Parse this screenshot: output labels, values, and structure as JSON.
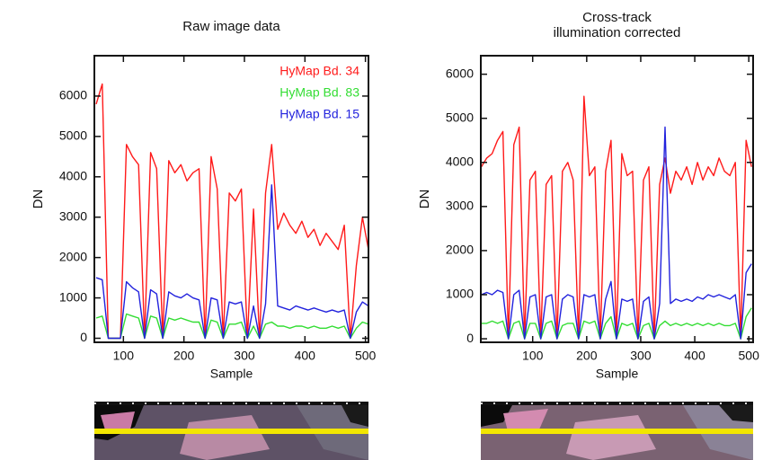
{
  "chart_data": [
    {
      "type": "line",
      "title": "Raw image data",
      "xlabel": "Sample",
      "ylabel": "DN",
      "xlim": [
        52,
        505
      ],
      "ylim": [
        -100,
        7000
      ],
      "xticks": [
        100,
        200,
        300,
        400,
        500
      ],
      "yticks": [
        0,
        1000,
        2000,
        3000,
        4000,
        5000,
        6000
      ],
      "legend": "upper right",
      "x": [
        55,
        65,
        75,
        85,
        95,
        105,
        115,
        125,
        135,
        145,
        155,
        165,
        175,
        185,
        195,
        205,
        215,
        225,
        235,
        245,
        255,
        265,
        275,
        285,
        295,
        305,
        315,
        325,
        335,
        345,
        355,
        365,
        375,
        385,
        395,
        405,
        415,
        425,
        435,
        445,
        455,
        465,
        475,
        485,
        495,
        505
      ],
      "series": [
        {
          "name": "HyMap Bd. 34",
          "color": "#ff1a1a",
          "values": [
            5800,
            6300,
            0,
            0,
            0,
            4800,
            4500,
            4300,
            0,
            4600,
            4200,
            0,
            4400,
            4100,
            4300,
            3900,
            4100,
            4200,
            0,
            4500,
            3700,
            0,
            3600,
            3400,
            3700,
            0,
            3200,
            0,
            3600,
            4800,
            2700,
            3100,
            2800,
            2600,
            2900,
            2500,
            2700,
            2300,
            2600,
            2400,
            2200,
            2800,
            0,
            1800,
            3000,
            2200
          ]
        },
        {
          "name": "HyMap Bd. 83",
          "color": "#33dd33",
          "values": [
            500,
            550,
            0,
            0,
            0,
            600,
            550,
            500,
            0,
            550,
            500,
            0,
            500,
            450,
            500,
            450,
            400,
            400,
            0,
            450,
            400,
            0,
            350,
            350,
            400,
            0,
            300,
            0,
            350,
            400,
            300,
            300,
            250,
            300,
            300,
            250,
            300,
            250,
            250,
            300,
            250,
            300,
            0,
            250,
            400,
            350
          ]
        },
        {
          "name": "HyMap Bd. 15",
          "color": "#2222dd",
          "values": [
            1500,
            1450,
            0,
            0,
            0,
            1400,
            1250,
            1150,
            0,
            1200,
            1100,
            0,
            1150,
            1050,
            1000,
            1100,
            1000,
            950,
            0,
            1000,
            950,
            0,
            900,
            850,
            900,
            0,
            800,
            0,
            850,
            3800,
            800,
            750,
            700,
            800,
            750,
            700,
            750,
            700,
            650,
            700,
            650,
            700,
            0,
            650,
            900,
            800
          ]
        }
      ]
    },
    {
      "type": "line",
      "title": [
        "Cross-track",
        "illumination corrected"
      ],
      "xlabel": "Sample",
      "ylabel": "DN",
      "xlim": [
        4,
        508
      ],
      "ylim": [
        -80,
        6420
      ],
      "xticks": [
        100,
        200,
        300,
        400,
        500
      ],
      "yticks": [
        0,
        1000,
        2000,
        3000,
        4000,
        5000,
        6000
      ],
      "x": [
        5,
        15,
        25,
        35,
        45,
        55,
        65,
        75,
        85,
        95,
        105,
        115,
        125,
        135,
        145,
        155,
        165,
        175,
        185,
        195,
        205,
        215,
        225,
        235,
        245,
        255,
        265,
        275,
        285,
        295,
        305,
        315,
        325,
        335,
        345,
        355,
        365,
        375,
        385,
        395,
        405,
        415,
        425,
        435,
        445,
        455,
        465,
        475,
        485,
        495,
        505
      ],
      "series": [
        {
          "color": "#ff1a1a",
          "values": [
            3900,
            4100,
            4200,
            4500,
            4700,
            0,
            4400,
            4800,
            0,
            3600,
            3800,
            0,
            3500,
            3700,
            0,
            3800,
            4000,
            3600,
            0,
            5500,
            3700,
            3900,
            0,
            3800,
            4500,
            0,
            4200,
            3700,
            3800,
            0,
            3600,
            3900,
            0,
            3500,
            4100,
            3300,
            3800,
            3600,
            3900,
            3500,
            4000,
            3600,
            3900,
            3700,
            4100,
            3800,
            3700,
            4000,
            0,
            4500,
            3900
          ]
        },
        {
          "color": "#33dd33",
          "values": [
            350,
            350,
            400,
            350,
            400,
            0,
            350,
            400,
            0,
            350,
            350,
            0,
            350,
            400,
            0,
            300,
            350,
            350,
            0,
            400,
            350,
            400,
            0,
            350,
            500,
            0,
            350,
            300,
            350,
            0,
            300,
            350,
            0,
            300,
            400,
            300,
            350,
            300,
            350,
            300,
            350,
            300,
            350,
            300,
            350,
            300,
            300,
            350,
            0,
            500,
            700
          ]
        },
        {
          "color": "#2222dd",
          "values": [
            1000,
            1050,
            1000,
            1100,
            1050,
            0,
            1000,
            1100,
            0,
            950,
            1000,
            0,
            950,
            1000,
            0,
            900,
            1000,
            950,
            0,
            1000,
            950,
            1000,
            0,
            900,
            1300,
            0,
            900,
            850,
            900,
            0,
            850,
            950,
            0,
            800,
            4800,
            800,
            900,
            850,
            900,
            850,
            950,
            900,
            1000,
            950,
            1000,
            950,
            900,
            1000,
            0,
            1500,
            1700
          ]
        }
      ]
    }
  ]
}
